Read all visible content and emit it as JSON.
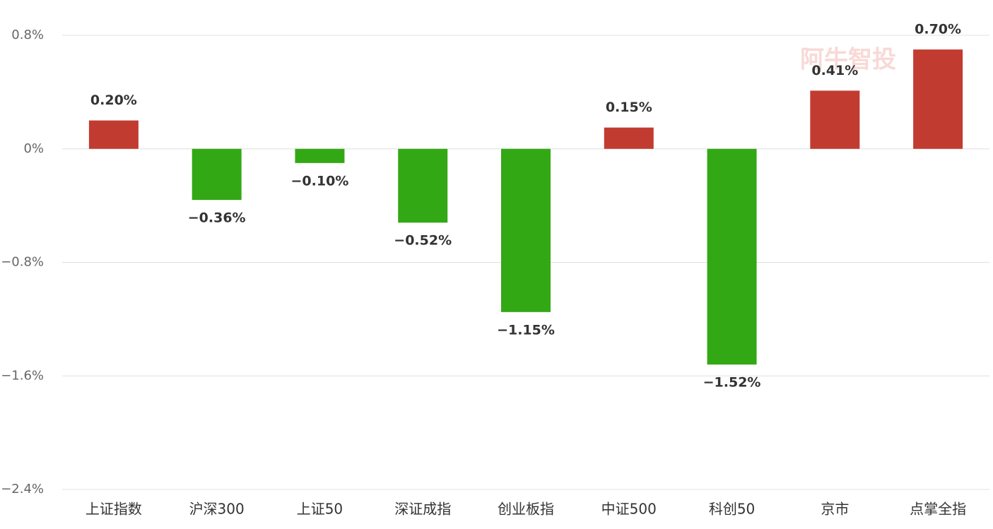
{
  "chart_data": {
    "type": "bar",
    "watermark": "阿牛智投",
    "categories": [
      "上证指数",
      "沪深300",
      "上证50",
      "深证成指",
      "创业板指",
      "中证500",
      "科创50",
      "京市",
      "点掌全指"
    ],
    "values": [
      0.2,
      -0.36,
      -0.1,
      -0.52,
      -1.15,
      0.15,
      -1.52,
      0.41,
      0.7
    ],
    "value_labels": [
      "0.20%",
      "−0.36%",
      "−0.10%",
      "−0.52%",
      "−1.15%",
      "0.15%",
      "−1.52%",
      "0.41%",
      "0.70%"
    ],
    "positive_color": "#c23b31",
    "negative_color": "#33a815",
    "ylim": [
      -2.4,
      0.8
    ],
    "yticks": [
      {
        "value": 0.8,
        "label": "0.8%"
      },
      {
        "value": 0,
        "label": "0%"
      },
      {
        "value": -0.8,
        "label": "−0.8%"
      },
      {
        "value": -1.6,
        "label": "−1.6%"
      },
      {
        "value": -2.4,
        "label": "−2.4%"
      }
    ],
    "grid": true
  }
}
